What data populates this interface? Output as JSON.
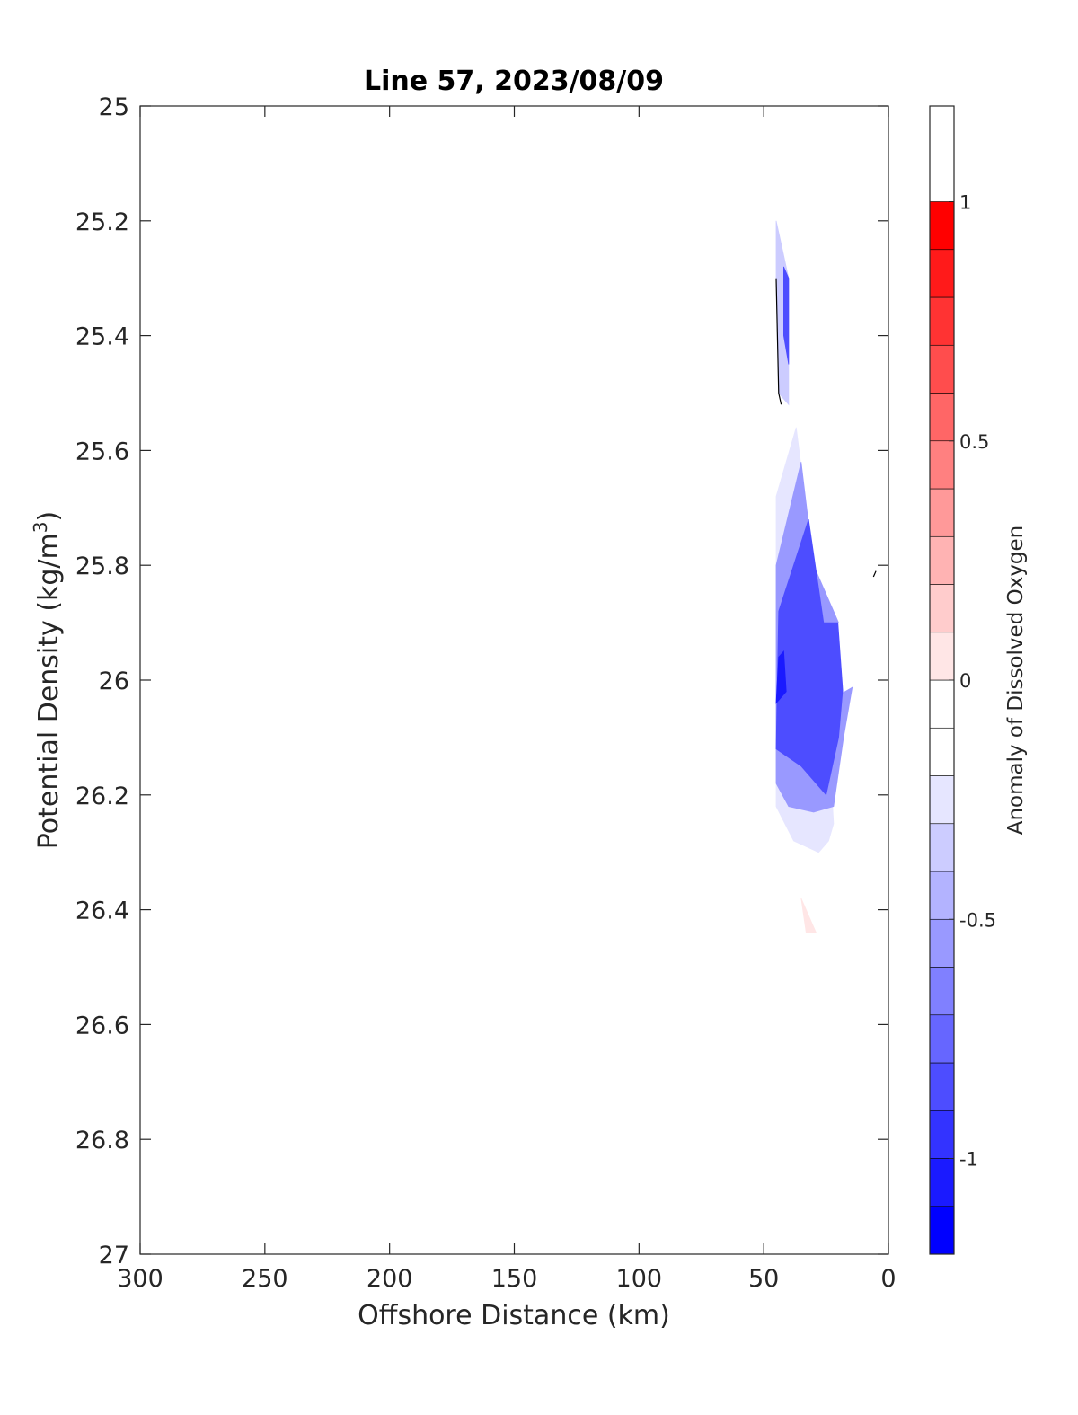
{
  "chart_data": {
    "type": "contour",
    "title": "Line 57, 2023/08/09",
    "xlabel": "Offshore Distance (km)",
    "ylabel_main": "Potential Density (kg/m",
    "ylabel_sup": "3",
    "ylabel_close": ")",
    "xlim": [
      300,
      0
    ],
    "ylim": [
      25,
      27
    ],
    "x_reversed": true,
    "y_reversed": true,
    "xticks": [
      "300",
      "250",
      "200",
      "150",
      "100",
      "50",
      "0"
    ],
    "yticks": [
      "25",
      "25.2",
      "25.4",
      "25.6",
      "25.8",
      "26",
      "26.2",
      "26.4",
      "26.6",
      "26.8",
      "27"
    ],
    "colorbar": {
      "label": "Anomaly of Dissolved Oxygen",
      "range": [
        -1.2,
        1.2
      ],
      "step": 0.1,
      "ticks": [
        "1",
        "0.5",
        "0",
        "-0.5",
        "-1"
      ],
      "colors": [
        "#0000ff",
        "#1a1aff",
        "#3333ff",
        "#4d4dff",
        "#6666ff",
        "#8080ff",
        "#9999ff",
        "#b3b3ff",
        "#ccccff",
        "#e6e6ff",
        "#ffffff",
        "#ffffff",
        "#ffe6e6",
        "#ffcccc",
        "#ffb3b3",
        "#ff9999",
        "#ff8080",
        "#ff6666",
        "#ff4d4d",
        "#ff3333",
        "#ff1a1a",
        "#ff0000"
      ]
    },
    "filled_regions": [
      {
        "level": -0.4,
        "points": [
          [
            45,
            25.2
          ],
          [
            40,
            25.3
          ],
          [
            40,
            25.52
          ],
          [
            44,
            25.5
          ],
          [
            45,
            25.3
          ]
        ]
      },
      {
        "level": -0.9,
        "points": [
          [
            42,
            25.28
          ],
          [
            40,
            25.3
          ],
          [
            40,
            25.45
          ],
          [
            42,
            25.4
          ]
        ]
      },
      {
        "level": -0.1,
        "points": [
          [
            39,
            25.52
          ],
          [
            45,
            25.58
          ],
          [
            45,
            26.2
          ],
          [
            41,
            26.35
          ],
          [
            40,
            26.67
          ],
          [
            35,
            26.68
          ],
          [
            30,
            26.6
          ],
          [
            29,
            26.5
          ],
          [
            24,
            26.35
          ],
          [
            22,
            26.25
          ],
          [
            30,
            25.85
          ],
          [
            38,
            25.6
          ]
        ]
      },
      {
        "level": -0.3,
        "points": [
          [
            37,
            25.56
          ],
          [
            45,
            25.68
          ],
          [
            45,
            26.22
          ],
          [
            38,
            26.28
          ],
          [
            28,
            26.3
          ],
          [
            24,
            26.28
          ],
          [
            22,
            26.25
          ],
          [
            24,
            26.1
          ],
          [
            30,
            25.8
          ]
        ]
      },
      {
        "level": -0.6,
        "points": [
          [
            35,
            25.62
          ],
          [
            45,
            25.8
          ],
          [
            45,
            26.18
          ],
          [
            40,
            26.22
          ],
          [
            30,
            26.23
          ],
          [
            22,
            26.22
          ],
          [
            18,
            26.1
          ],
          [
            14,
            26.0
          ],
          [
            20,
            25.9
          ],
          [
            30,
            25.8
          ]
        ]
      },
      {
        "level": -0.9,
        "points": [
          [
            32,
            25.72
          ],
          [
            44,
            25.88
          ],
          [
            45,
            26.12
          ],
          [
            35,
            26.15
          ],
          [
            25,
            26.2
          ],
          [
            20,
            26.1
          ],
          [
            18,
            26.0
          ],
          [
            20,
            25.9
          ],
          [
            26,
            25.9
          ]
        ]
      },
      {
        "level": -1.1,
        "points": [
          [
            44,
            25.96
          ],
          [
            42,
            25.95
          ],
          [
            41,
            26.02
          ],
          [
            45,
            26.04
          ]
        ]
      },
      {
        "level": -0.2,
        "points": [
          [
            20,
            25.9
          ],
          [
            10,
            25.9
          ],
          [
            6,
            25.82
          ],
          [
            5,
            26.0
          ],
          [
            10,
            26.0
          ],
          [
            18,
            26.02
          ]
        ]
      },
      {
        "level": 0.0,
        "points": [
          [
            35,
            26.38
          ],
          [
            31,
            26.42
          ],
          [
            29,
            26.44
          ],
          [
            33,
            26.44
          ]
        ]
      }
    ],
    "contour_lines": [
      [
        [
          45,
          25.3
        ],
        [
          44,
          25.5
        ],
        [
          43,
          25.52
        ]
      ],
      [
        [
          6,
          25.82
        ],
        [
          5,
          25.81
        ]
      ]
    ]
  }
}
